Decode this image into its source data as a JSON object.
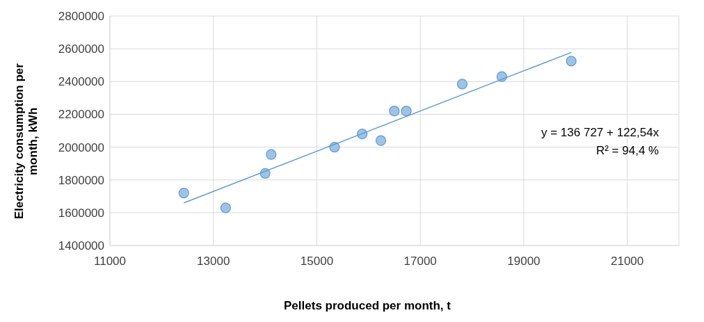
{
  "chart_data": {
    "type": "scatter",
    "xlabel": "Pellets produced per month, t",
    "ylabel": "Electricity consumption per month, kWh",
    "x": [
      12429,
      13237,
      14001,
      14117,
      15343,
      15877,
      16238,
      16498,
      16729,
      17811,
      18576,
      19918
    ],
    "series": [
      {
        "color": "#9dc3e6",
        "marker": "circle",
        "values": [
          1720000,
          1630000,
          1840000,
          1955000,
          2000000,
          2080000,
          2040000,
          2220000,
          2220000,
          2385000,
          2430000,
          2525000
        ]
      },
      {
        "type": "line",
        "color": "#5b9bd5",
        "marker": "none",
        "x": [
          12429,
          19918
        ],
        "values": [
          1660000,
          2578000
        ]
      }
    ],
    "annotations": [
      "y = 136 727 + 122,54x",
      "R² = 94,4 %"
    ],
    "xlim": [
      11000,
      22000
    ],
    "xticks": [
      11000,
      13000,
      15000,
      17000,
      19000,
      21000
    ],
    "ylim": [
      1400000,
      2800000
    ],
    "yticks": [
      1400000,
      1600000,
      1800000,
      2000000,
      2200000,
      2400000,
      2600000,
      2800000
    ],
    "grid": true,
    "line_style": "solid"
  }
}
